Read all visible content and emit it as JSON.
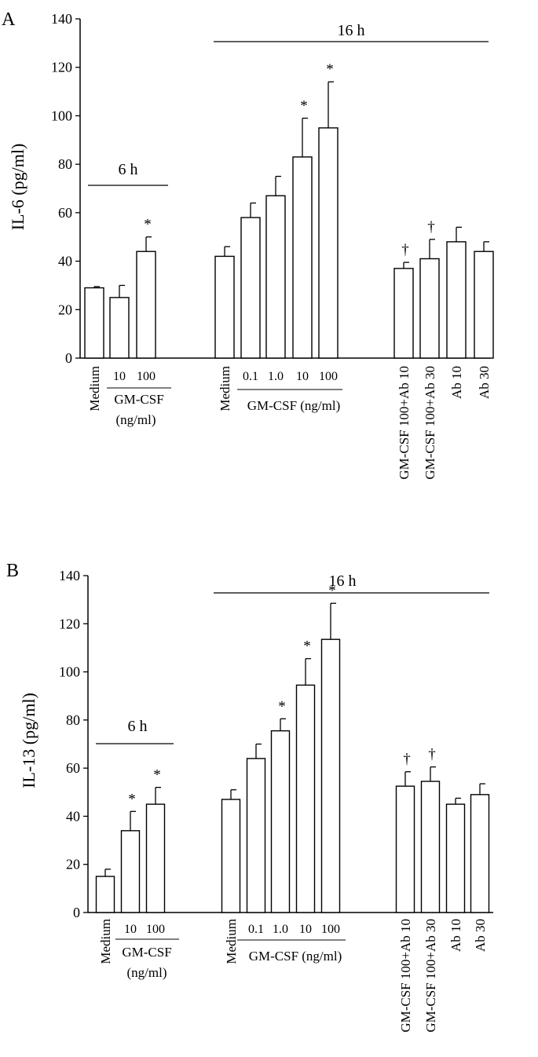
{
  "chart_data": [
    {
      "type": "bar",
      "panel_label": "A",
      "ylabel": "IL-6 (pg/ml)",
      "ylim": [
        0,
        140
      ],
      "yticks": [
        0,
        20,
        40,
        60,
        80,
        100,
        120,
        140
      ],
      "bars": [
        {
          "label": "Medium",
          "value": 29,
          "error": 0.5,
          "mark": ""
        },
        {
          "label": "10",
          "value": 25,
          "error": 5,
          "mark": ""
        },
        {
          "label": "100",
          "value": 44,
          "error": 6,
          "mark": "*"
        },
        {
          "label": "Medium",
          "value": 42,
          "error": 4,
          "mark": ""
        },
        {
          "label": "0.1",
          "value": 58,
          "error": 6,
          "mark": ""
        },
        {
          "label": "1.0",
          "value": 67,
          "error": 8,
          "mark": ""
        },
        {
          "label": "10",
          "value": 83,
          "error": 16,
          "mark": "*"
        },
        {
          "label": "100",
          "value": 95,
          "error": 19,
          "mark": "*"
        },
        {
          "label": "GM-CSF 100+Ab 10",
          "value": 37,
          "error": 2.5,
          "mark": "†"
        },
        {
          "label": "GM-CSF 100+Ab 30",
          "value": 41,
          "error": 8,
          "mark": "†"
        },
        {
          "label": "Ab 10",
          "value": 48,
          "error": 6,
          "mark": ""
        },
        {
          "label": "Ab 30",
          "value": 44,
          "error": 4,
          "mark": ""
        }
      ],
      "groups": {
        "g6": {
          "title": "6 h",
          "axis_label": "GM-CSF",
          "unit_label": "(ng/ml)"
        },
        "g16": {
          "title": "16 h",
          "axis_label": "GM-CSF (ng/ml)"
        }
      }
    },
    {
      "type": "bar",
      "panel_label": "B",
      "ylabel": "IL-13 (pg/ml)",
      "ylim": [
        0,
        140
      ],
      "yticks": [
        0,
        20,
        40,
        60,
        80,
        100,
        120,
        140
      ],
      "bars": [
        {
          "label": "Medium",
          "value": 15,
          "error": 3,
          "mark": ""
        },
        {
          "label": "10",
          "value": 34,
          "error": 8,
          "mark": "*"
        },
        {
          "label": "100",
          "value": 45,
          "error": 7,
          "mark": "*"
        },
        {
          "label": "Medium",
          "value": 47,
          "error": 4,
          "mark": ""
        },
        {
          "label": "0.1",
          "value": 64,
          "error": 6,
          "mark": ""
        },
        {
          "label": "1.0",
          "value": 75.5,
          "error": 5,
          "mark": "*"
        },
        {
          "label": "10",
          "value": 94.5,
          "error": 11,
          "mark": "*"
        },
        {
          "label": "100",
          "value": 113.5,
          "error": 15,
          "mark": "*"
        },
        {
          "label": "GM-CSF 100+Ab 10",
          "value": 52.5,
          "error": 6,
          "mark": "†"
        },
        {
          "label": "GM-CSF 100+Ab 30",
          "value": 54.5,
          "error": 6,
          "mark": "†"
        },
        {
          "label": "Ab 10",
          "value": 45,
          "error": 2.5,
          "mark": ""
        },
        {
          "label": "Ab 30",
          "value": 49,
          "error": 4.5,
          "mark": ""
        }
      ],
      "groups": {
        "g6": {
          "title": "6 h",
          "axis_label": "GM-CSF",
          "unit_label": "(ng/ml)"
        },
        "g16": {
          "title": "16 h",
          "axis_label": "GM-CSF (ng/ml)"
        }
      }
    }
  ]
}
